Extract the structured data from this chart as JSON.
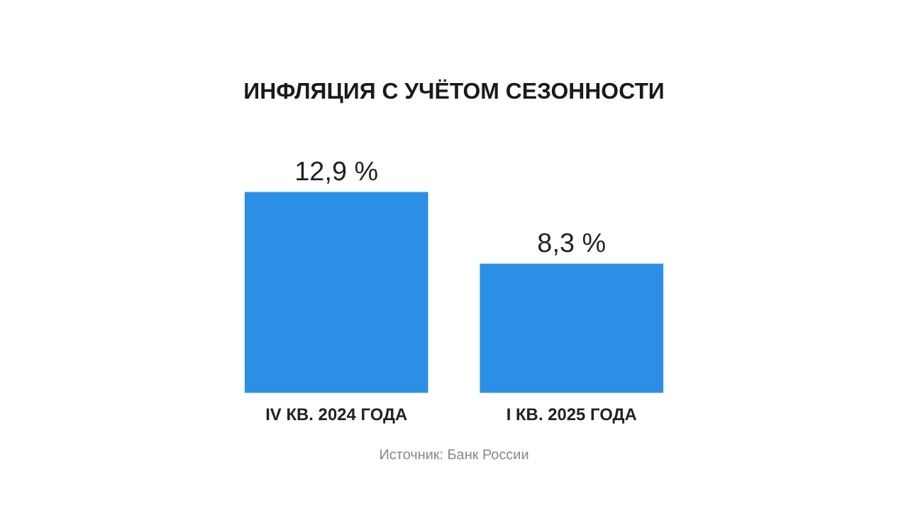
{
  "chart_data": {
    "type": "bar",
    "title": "ИНФЛЯЦИЯ С УЧЁТОМ СЕЗОННОСТИ",
    "categories": [
      "IV КВ. 2024 ГОДА",
      "I КВ. 2025 ГОДА"
    ],
    "values": [
      12.9,
      8.3
    ],
    "value_labels": [
      "12,9 %",
      "8,3 %"
    ],
    "color": "#2b8fe6",
    "annotations": [
      "Источник: Банк России"
    ]
  }
}
